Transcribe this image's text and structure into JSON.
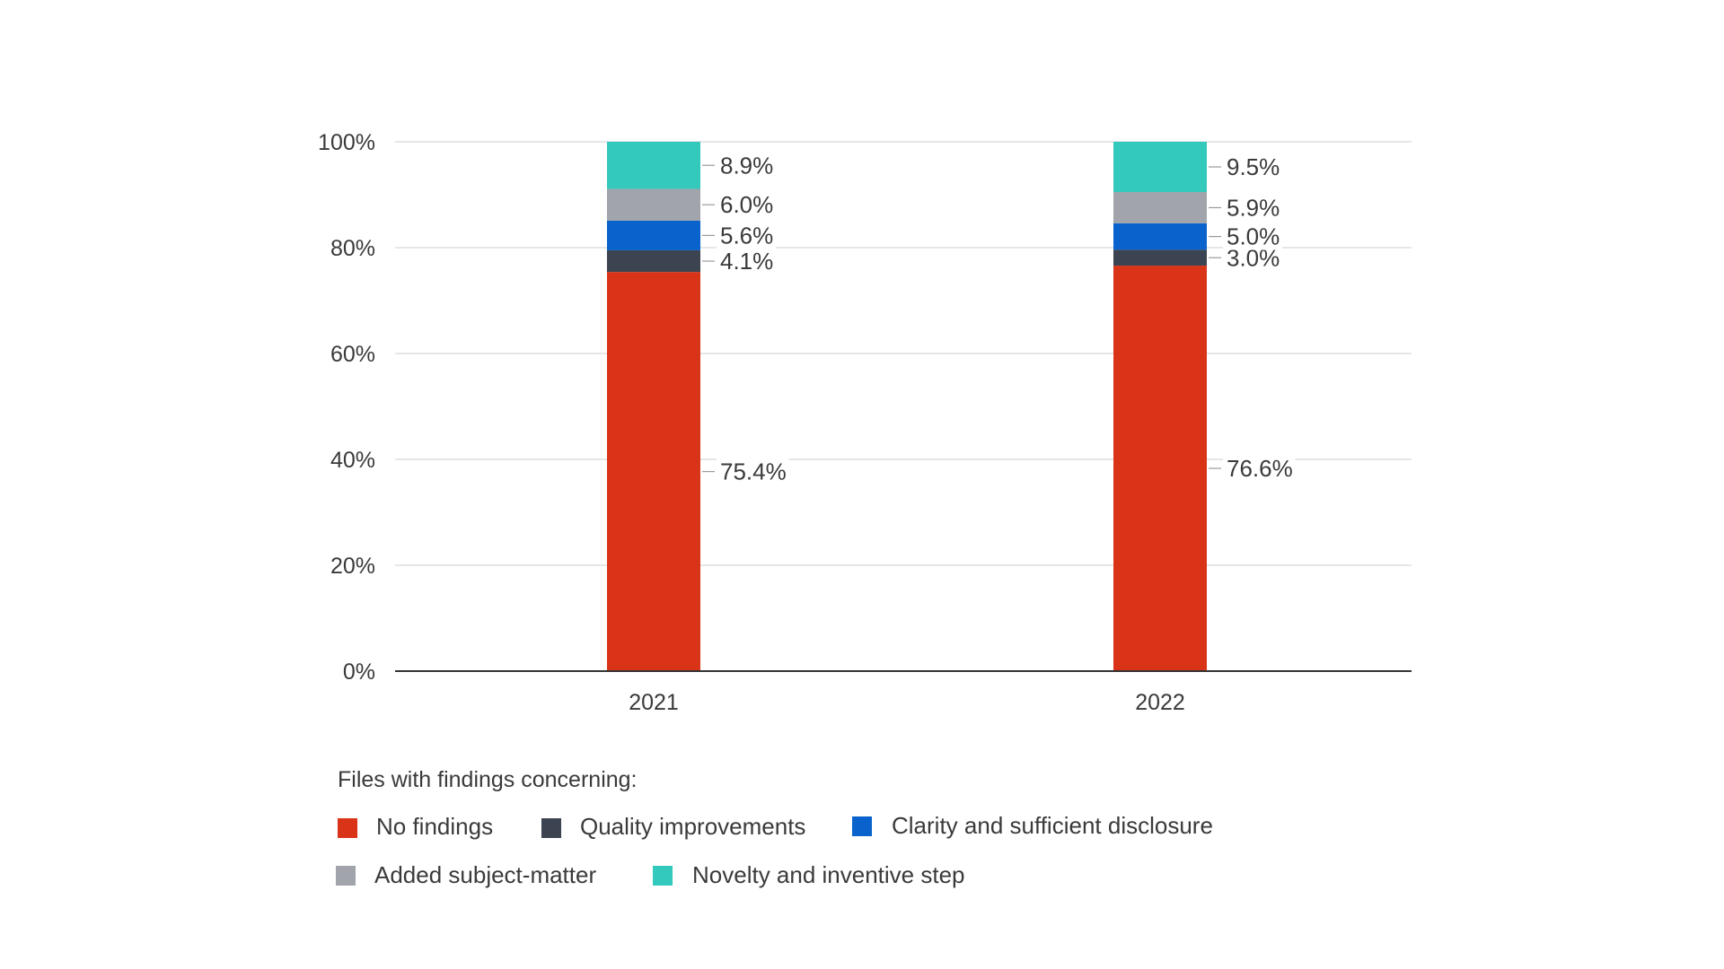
{
  "chart_data": {
    "type": "bar",
    "stacked": true,
    "title": "",
    "xlabel": "",
    "ylabel": "",
    "ylim": [
      0,
      100
    ],
    "grid": true,
    "categories": [
      "2021",
      "2022"
    ],
    "y_ticks": [
      0,
      20,
      40,
      60,
      80,
      100
    ],
    "y_tick_labels": [
      "0%",
      "20%",
      "40%",
      "60%",
      "80%",
      "100%"
    ],
    "legend_title": "Files with findings concerning:",
    "legend_position": "bottom-left",
    "series": [
      {
        "name": "No findings",
        "color": "#d93418",
        "values": [
          75.4,
          76.6
        ],
        "labels": [
          "75.4%",
          "76.6%"
        ]
      },
      {
        "name": "Quality improvements",
        "color": "#3d4451",
        "values": [
          4.1,
          3.0
        ],
        "labels": [
          "4.1%",
          "3.0%"
        ]
      },
      {
        "name": "Clarity and sufficient disclosure",
        "color": "#0a63cc",
        "values": [
          5.6,
          5.0
        ],
        "labels": [
          "5.6%",
          "5.0%"
        ]
      },
      {
        "name": "Added subject-matter",
        "color": "#a1a4ab",
        "values": [
          6.0,
          5.9
        ],
        "labels": [
          "6.0%",
          "5.9%"
        ]
      },
      {
        "name": "Novelty and inventive step",
        "color": "#33c9bd",
        "values": [
          8.9,
          9.5
        ],
        "labels": [
          "8.9%",
          "9.5%"
        ]
      }
    ]
  }
}
